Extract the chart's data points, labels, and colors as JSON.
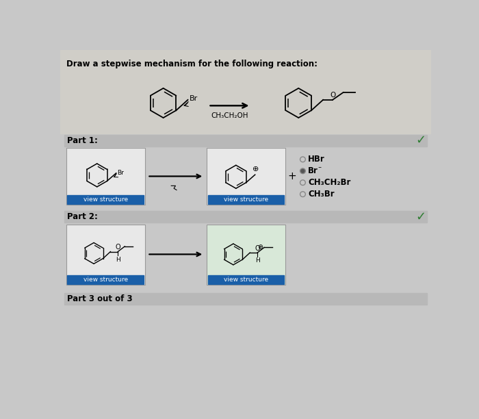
{
  "bg_color": "#c8c8c8",
  "page_bg_top": "#dcdcdc",
  "title": "Draw a stepwise mechanism for the following reaction:",
  "title_fontsize": 8.5,
  "reagent_label": "CH₃CH₂OH",
  "part1_label": "Part 1:",
  "part2_label": "Part 2:",
  "part3_label": "Part 3 out of 3",
  "view_structure_label": "view structure",
  "view_btn_color": "#1a5fa8",
  "view_btn_text_color": "#ffffff",
  "radio_options": [
    "HBr",
    "Br⁻",
    "CH₃CH₂Br",
    "CH₃Br"
  ],
  "selected_radio": 1,
  "plus_sign": "+",
  "checkmark_color": "#2e7d32",
  "part_header_bg": "#b8b8b8",
  "card_bg": "#e8e8e8",
  "card_bg2": "#d8e8d8",
  "card_border": "#999999",
  "top_section_bg": "#d0cec8"
}
